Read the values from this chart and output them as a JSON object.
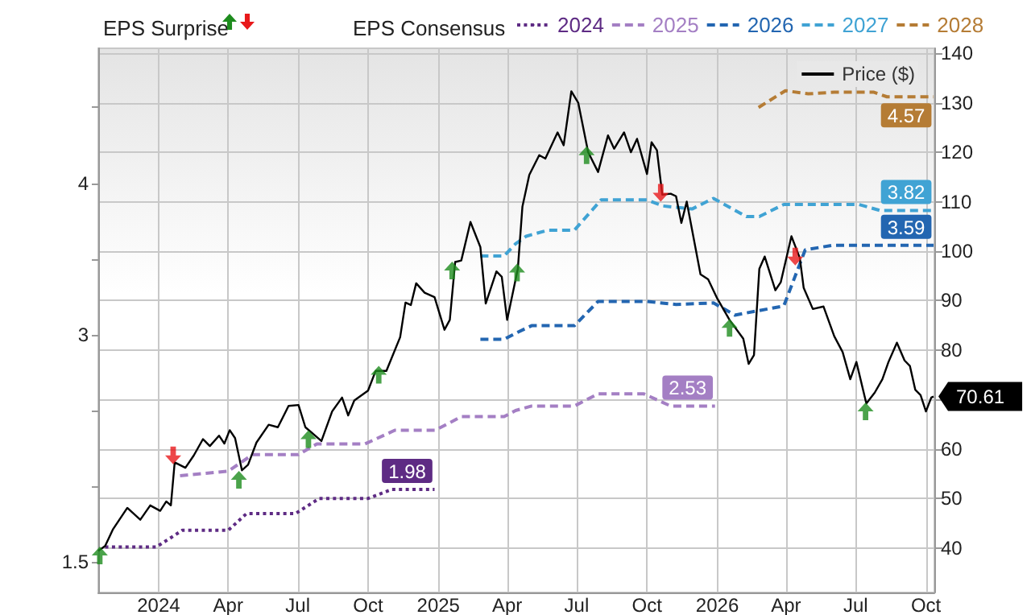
{
  "chart_data": {
    "type": "line",
    "annotations": [
      "EPS Surprise"
    ],
    "legend_title": "EPS Consensus",
    "legend": "top right",
    "grid": true,
    "xlim": [
      "2023-10-14",
      "2026-10-12"
    ],
    "xticks": [
      {
        "value": "2024-01-01",
        "label": "2024"
      },
      {
        "value": "2024-04-01",
        "label": "Apr"
      },
      {
        "value": "2024-07-01",
        "label": "Jul"
      },
      {
        "value": "2024-10-01",
        "label": "Oct"
      },
      {
        "value": "2025-01-01",
        "label": "2025"
      },
      {
        "value": "2025-04-01",
        "label": "Apr"
      },
      {
        "value": "2025-07-01",
        "label": "Jul"
      },
      {
        "value": "2025-10-01",
        "label": "Oct"
      },
      {
        "value": "2026-01-01",
        "label": "2026"
      },
      {
        "value": "2026-04-01",
        "label": "Apr"
      },
      {
        "value": "2026-07-01",
        "label": "Jul"
      },
      {
        "value": "2026-10-01",
        "label": "Oct"
      }
    ],
    "ylim": [
      1.3,
      4.89
    ],
    "yticks": [
      1.5,
      {
        "value": 2,
        "label": null
      },
      {
        "value": 2.5,
        "label": null
      },
      3,
      {
        "value": 3.5,
        "label": null
      },
      4,
      {
        "value": 4.5,
        "label": null
      }
    ],
    "y2lim": [
      31,
      141
    ],
    "y2ticks": [
      40,
      50,
      60,
      {
        "value": 70,
        "label": null
      },
      80,
      90,
      100,
      110,
      120,
      130,
      140
    ],
    "series": [
      {
        "name": "2024",
        "color": "#5e2b84",
        "axis": "y",
        "line_style": "dotted",
        "x": [
          "2023-10-23",
          "2023-12-29",
          "2024-02-01",
          "2024-04-01",
          "2024-04-25",
          "2024-06-28",
          "2024-07-29",
          "2024-10-01",
          "2024-11-01",
          "2024-12-27"
        ],
        "values": [
          1.6,
          1.6,
          1.71,
          1.71,
          1.82,
          1.82,
          1.92,
          1.92,
          1.98,
          1.98
        ],
        "value_labels": [
          null,
          null,
          null,
          null,
          null,
          null,
          null,
          null,
          null,
          "1.98"
        ]
      },
      {
        "name": "2025",
        "color": "#a47fc4",
        "axis": "y",
        "line_style": "dashed",
        "x": [
          "2024-01-29",
          "2024-04-01",
          "2024-05-03",
          "2024-07-02",
          "2024-07-26",
          "2024-09-27",
          "2024-11-05",
          "2024-12-28",
          "2025-01-31",
          "2025-03-28",
          "2025-04-12",
          "2025-05-03",
          "2025-06-28",
          "2025-07-29",
          "2025-09-27",
          "2025-11-01",
          "2025-12-29"
        ],
        "values": [
          2.07,
          2.1,
          2.21,
          2.21,
          2.28,
          2.28,
          2.37,
          2.37,
          2.46,
          2.46,
          2.5,
          2.53,
          2.53,
          2.61,
          2.61,
          2.53,
          2.53
        ],
        "value_labels": [
          null,
          null,
          null,
          null,
          null,
          null,
          null,
          null,
          null,
          null,
          null,
          null,
          null,
          null,
          null,
          null,
          "2.53"
        ]
      },
      {
        "name": "2026",
        "color": "#2366b1",
        "axis": "y",
        "line_style": "dashed",
        "x": [
          "2025-02-25",
          "2025-03-28",
          "2025-04-12",
          "2025-05-03",
          "2025-06-28",
          "2025-07-29",
          "2025-10-01",
          "2025-11-08",
          "2025-12-27",
          "2026-01-24",
          "2026-03-29",
          "2026-04-26",
          "2026-05-31",
          "2026-10-11"
        ],
        "values": [
          2.97,
          2.97,
          3.01,
          3.06,
          3.06,
          3.22,
          3.22,
          3.2,
          3.21,
          3.13,
          3.19,
          3.56,
          3.59,
          3.59
        ],
        "value_labels": [
          null,
          null,
          null,
          null,
          null,
          null,
          null,
          null,
          null,
          null,
          null,
          null,
          null,
          "3.59"
        ]
      },
      {
        "name": "2027",
        "color": "#40a3d4",
        "axis": "y",
        "line_style": "dashed",
        "x": [
          "2025-02-25",
          "2025-03-28",
          "2025-04-12",
          "2025-04-26",
          "2025-05-24",
          "2025-06-28",
          "2025-08-02",
          "2025-10-01",
          "2025-10-22",
          "2025-11-29",
          "2025-12-27",
          "2026-02-08",
          "2026-02-25",
          "2026-03-29",
          "2026-07-05",
          "2026-08-02",
          "2026-10-11"
        ],
        "values": [
          3.52,
          3.52,
          3.6,
          3.65,
          3.69,
          3.69,
          3.89,
          3.89,
          3.85,
          3.83,
          3.9,
          3.78,
          3.78,
          3.86,
          3.86,
          3.82,
          3.82
        ],
        "value_labels": [
          null,
          null,
          null,
          null,
          null,
          null,
          null,
          null,
          null,
          null,
          null,
          null,
          null,
          null,
          null,
          null,
          "3.82"
        ]
      },
      {
        "name": "2028",
        "color": "#b57c35",
        "axis": "y",
        "line_style": "dashed",
        "x": [
          "2026-02-24",
          "2026-03-31",
          "2026-04-30",
          "2026-06-03",
          "2026-07-25",
          "2026-08-11",
          "2026-10-11"
        ],
        "values": [
          4.5,
          4.61,
          4.59,
          4.6,
          4.6,
          4.57,
          4.57
        ],
        "value_labels": [
          null,
          null,
          null,
          null,
          null,
          null,
          "4.57"
        ]
      },
      {
        "name": "Price ($)",
        "color": "#000000",
        "axis": "y2",
        "line_style": "solid",
        "x": [
          "2023-10-14",
          "2023-10-23",
          "2023-11-02",
          "2023-11-21",
          "2023-12-08",
          "2023-12-21",
          "2024-01-03",
          "2024-01-11",
          "2024-01-17",
          "2024-01-22",
          "2024-02-05",
          "2024-02-16",
          "2024-02-28",
          "2024-03-08",
          "2024-03-20",
          "2024-03-27",
          "2024-04-03",
          "2024-04-10",
          "2024-04-19",
          "2024-04-27",
          "2024-05-08",
          "2024-05-24",
          "2024-06-05",
          "2024-06-19",
          "2024-07-02",
          "2024-07-11",
          "2024-08-01",
          "2024-08-15",
          "2024-08-28",
          "2024-09-05",
          "2024-09-13",
          "2024-10-01",
          "2024-10-11",
          "2024-10-25",
          "2024-11-12",
          "2024-11-19",
          "2024-11-26",
          "2024-12-03",
          "2024-12-14",
          "2024-12-27",
          "2025-01-09",
          "2025-01-16",
          "2025-01-23",
          "2025-01-31",
          "2025-02-12",
          "2025-02-25",
          "2025-03-04",
          "2025-03-18",
          "2025-03-25",
          "2025-04-01",
          "2025-04-15",
          "2025-04-21",
          "2025-04-30",
          "2025-05-13",
          "2025-05-21",
          "2025-06-06",
          "2025-06-14",
          "2025-06-24",
          "2025-07-03",
          "2025-07-16",
          "2025-07-29",
          "2025-08-11",
          "2025-08-19",
          "2025-09-01",
          "2025-09-10",
          "2025-09-18",
          "2025-10-01",
          "2025-10-07",
          "2025-10-14",
          "2025-10-21",
          "2025-11-01",
          "2025-11-08",
          "2025-11-15",
          "2025-11-22",
          "2025-12-10",
          "2025-12-20",
          "2026-01-01",
          "2026-01-17",
          "2026-02-04",
          "2026-02-11",
          "2026-02-18",
          "2026-02-25",
          "2026-03-04",
          "2026-03-18",
          "2026-03-25",
          "2026-04-08",
          "2026-04-19",
          "2026-04-24",
          "2026-05-06",
          "2026-05-20",
          "2026-06-03",
          "2026-06-14",
          "2026-06-24",
          "2026-07-02",
          "2026-07-15",
          "2026-07-26",
          "2026-08-05",
          "2026-08-13",
          "2026-08-24",
          "2026-09-03",
          "2026-09-10",
          "2026-09-17",
          "2026-09-24",
          "2026-10-01",
          "2026-10-08",
          "2026-10-11"
        ],
        "values": [
          39.4,
          40.4,
          43.7,
          48.1,
          45.7,
          48.6,
          47.5,
          49.4,
          48.6,
          57.3,
          56.2,
          58.7,
          62.0,
          60.6,
          62.7,
          61.1,
          63.8,
          62.2,
          55.7,
          56.8,
          61.3,
          64.9,
          64.4,
          68.7,
          68.9,
          64.4,
          61.6,
          67.6,
          70.4,
          66.8,
          69.8,
          71.8,
          75.8,
          75.8,
          82.6,
          89.6,
          89.1,
          93.5,
          91.6,
          90.7,
          84.1,
          86.1,
          97.8,
          98.1,
          105.9,
          100.8,
          89.4,
          95.9,
          94.8,
          86.1,
          96.4,
          109.0,
          115.4,
          119.4,
          118.7,
          124.0,
          121.4,
          132.3,
          130.0,
          120.0,
          116.0,
          123.4,
          120.7,
          124.0,
          120.0,
          122.7,
          115.6,
          122.0,
          120.4,
          111.4,
          111.6,
          111.1,
          105.7,
          110.0,
          95.3,
          94.3,
          90.4,
          86.1,
          82.3,
          77.2,
          79.0,
          96.4,
          98.9,
          92.1,
          93.7,
          103.0,
          98.6,
          92.6,
          88.3,
          88.8,
          82.8,
          79.6,
          74.1,
          77.6,
          69.2,
          71.4,
          74.1,
          77.6,
          81.5,
          77.9,
          76.8,
          72.0,
          70.9,
          67.6,
          70.4,
          70.61
        ],
        "value_labels": [
          null,
          null,
          null,
          null,
          null,
          null,
          null,
          null,
          null,
          null,
          null,
          null,
          null,
          null,
          null,
          null,
          null,
          null,
          null,
          null,
          null,
          null,
          null,
          null,
          null,
          null,
          null,
          null,
          null,
          null,
          null,
          null,
          null,
          null,
          null,
          null,
          null,
          null,
          null,
          null,
          null,
          null,
          null,
          null,
          null,
          null,
          null,
          null,
          null,
          null,
          null,
          null,
          null,
          null,
          null,
          null,
          null,
          null,
          null,
          null,
          null,
          null,
          null,
          null,
          null,
          null,
          null,
          null,
          null,
          null,
          null,
          null,
          null,
          null,
          null,
          null,
          null,
          null,
          null,
          null,
          null,
          null,
          null,
          null,
          null,
          null,
          null,
          null,
          null,
          null,
          null,
          null,
          null,
          null,
          null,
          null,
          null,
          null,
          null,
          null,
          null,
          null,
          null,
          null,
          null,
          "70.61"
        ]
      },
      {
        "type": "scatter",
        "color": "#1e8c1e",
        "marker": "triangle",
        "axis": "y2",
        "x": [
          "2023-10-16",
          "2024-04-15",
          "2024-07-15",
          "2024-10-15",
          "2025-01-19",
          "2025-04-14",
          "2025-07-14",
          "2026-01-17",
          "2026-07-14"
        ],
        "values": [
          38.5,
          53.8,
          62.0,
          75.0,
          96.1,
          95.7,
          119.4,
          84.5,
          67.6
        ]
      },
      {
        "type": "scatter",
        "color": "#e8191b",
        "marker": "triangle",
        "axis": "y2",
        "x": [
          "2024-01-20",
          "2025-10-19",
          "2026-04-13"
        ],
        "values": [
          58.7,
          111.8,
          98.9
        ]
      }
    ]
  }
}
